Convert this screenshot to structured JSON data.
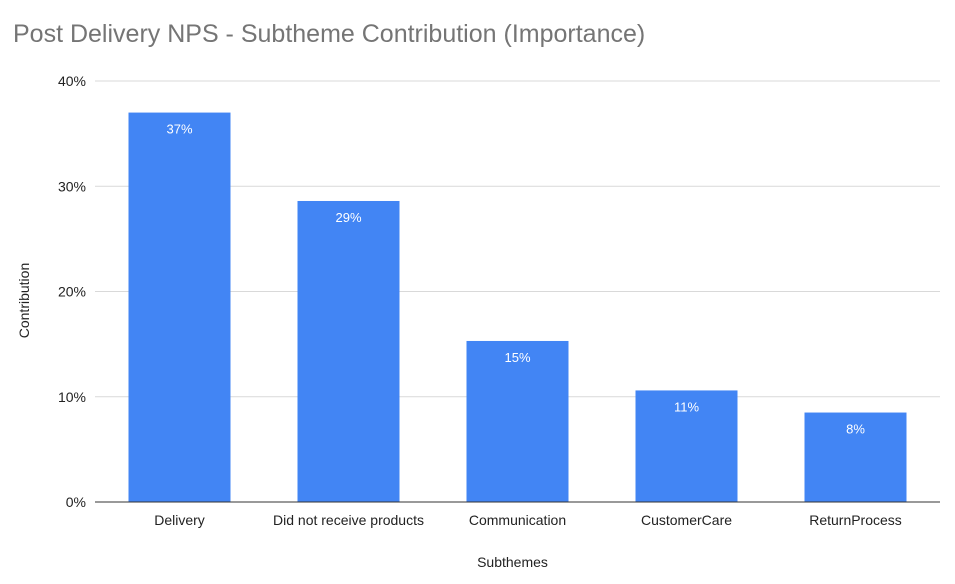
{
  "chart_data": {
    "type": "bar",
    "title": "Post Delivery NPS - Subtheme Contribution (Importance)",
    "xlabel": "Subthemes",
    "ylabel": "Contribution",
    "categories": [
      "Delivery",
      "Did not receive products",
      "Communication",
      "CustomerCare",
      "ReturnProcess"
    ],
    "values": [
      0.37,
      0.286,
      0.153,
      0.106,
      0.085
    ],
    "data_labels": [
      "37%",
      "29%",
      "15%",
      "11%",
      "8%"
    ],
    "ylim": [
      0,
      0.4
    ],
    "yticks": [
      0,
      0.1,
      0.2,
      0.3,
      0.4
    ],
    "ytick_labels": [
      "0%",
      "10%",
      "20%",
      "30%",
      "40%"
    ],
    "grid": true,
    "legend": "none",
    "bar_color": "#4285f4"
  }
}
